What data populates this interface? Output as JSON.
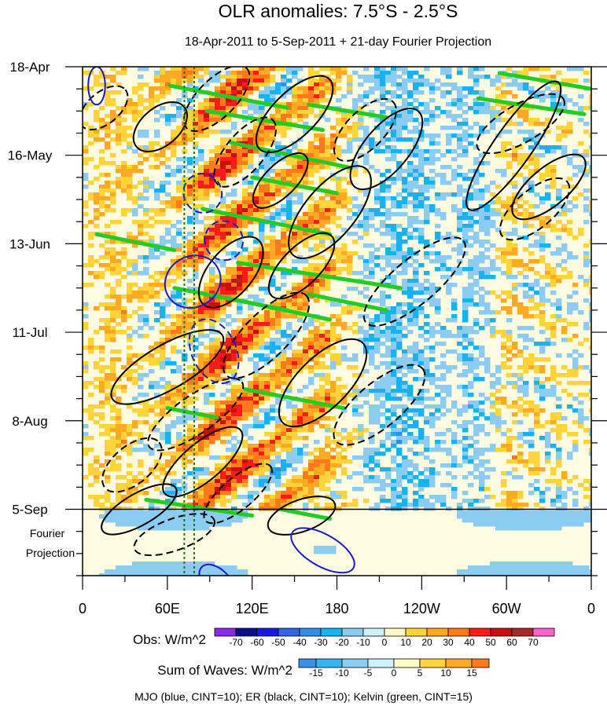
{
  "chart_data": {
    "type": "heatmap",
    "title": "OLR anomalies: 7.5°S - 2.5°S",
    "subtitle": "18-Apr-2011 to 5-Sep-2011 + 21-day Fourier Projection",
    "x_ticks": [
      "0",
      "60E",
      "120E",
      "180",
      "120W",
      "60W",
      "0"
    ],
    "x_values_deg_east": [
      0,
      60,
      120,
      180,
      240,
      300,
      360
    ],
    "y_ticks": [
      "18-Apr",
      "16-May",
      "13-Jun",
      "11-Jul",
      "8-Aug",
      "5-Sep"
    ],
    "y_values_day_offset": [
      0,
      28,
      56,
      84,
      112,
      140
    ],
    "projection_label_line1": "Fourier",
    "projection_label_line2": "Projection",
    "projection_days": 21,
    "obs_legend": {
      "label": "Obs: W/m^2",
      "levels": [
        "-70",
        "-60",
        "-50",
        "-40",
        "-30",
        "-20",
        "-10",
        "0",
        "10",
        "20",
        "30",
        "40",
        "50",
        "60",
        "70"
      ],
      "colors": [
        "#8a2be2",
        "#0d0d8a",
        "#1a1adf",
        "#3366dd",
        "#2f8fe6",
        "#18b2ee",
        "#8ccbf2",
        "#cdf0fa",
        "#fffbc8",
        "#ffd43a",
        "#ffaa22",
        "#ff7a1a",
        "#ff1a1a",
        "#c81010",
        "#a52a2a",
        "#ff66cc"
      ]
    },
    "waves_legend": {
      "label": "Sum of Waves: W/m^2",
      "levels": [
        "-15",
        "-10",
        "-5",
        "0",
        "5",
        "10",
        "15"
      ],
      "colors": [
        "#3c8fe8",
        "#36b4ee",
        "#8ccbf2",
        "#cdf0fa",
        "#fffbc8",
        "#ffd43a",
        "#ffaa22",
        "#ff7a1a"
      ]
    },
    "footnote": "MJO (blue, CINT=10); ER (black, CINT=10); Kelvin (green, CINT=15)",
    "series_colors": {
      "MJO": "#1a1acc",
      "ER": "#000000",
      "Kelvin": "#22cc22"
    },
    "ylim_days": [
      0,
      161
    ],
    "xlim_deg": [
      0,
      360
    ],
    "vertical_markers_deg": [
      72,
      79
    ],
    "features": {
      "kelvin_segments": [
        {
          "lon0": 62,
          "day0": 6,
          "lon1": 145,
          "day1": 13
        },
        {
          "lon0": 88,
          "day0": 14,
          "lon1": 170,
          "day1": 20
        },
        {
          "lon0": 160,
          "day0": 12,
          "lon1": 215,
          "day1": 16
        },
        {
          "lon0": 105,
          "day0": 24,
          "lon1": 190,
          "day1": 32
        },
        {
          "lon0": 120,
          "day0": 35,
          "lon1": 180,
          "day1": 40
        },
        {
          "lon0": 85,
          "day0": 45,
          "lon1": 175,
          "day1": 53
        },
        {
          "lon0": 10,
          "day0": 53,
          "lon1": 65,
          "day1": 58
        },
        {
          "lon0": 110,
          "day0": 62,
          "lon1": 225,
          "day1": 70
        },
        {
          "lon0": 65,
          "day0": 70,
          "lon1": 145,
          "day1": 77
        },
        {
          "lon0": 100,
          "day0": 73,
          "lon1": 175,
          "day1": 80
        },
        {
          "lon0": 160,
          "day0": 72,
          "lon1": 215,
          "day1": 77
        },
        {
          "lon0": 115,
          "day0": 102,
          "lon1": 185,
          "day1": 108
        },
        {
          "lon0": 60,
          "day0": 108,
          "lon1": 95,
          "day1": 111
        },
        {
          "lon0": 45,
          "day0": 137,
          "lon1": 120,
          "day1": 142
        },
        {
          "lon0": 140,
          "day0": 140,
          "lon1": 175,
          "day1": 143
        },
        {
          "lon0": 295,
          "day0": 2,
          "lon1": 360,
          "day1": 7
        },
        {
          "lon0": 280,
          "day0": 10,
          "lon1": 355,
          "day1": 15
        }
      ],
      "er_solid": [
        {
          "lon": 55,
          "day": 19,
          "rx": 22,
          "ry": 6,
          "rot": -40
        },
        {
          "lon": 150,
          "day": 15,
          "rx": 35,
          "ry": 7,
          "rot": -45
        },
        {
          "lon": 215,
          "day": 26,
          "rx": 35,
          "ry": 7,
          "rot": -50
        },
        {
          "lon": 140,
          "day": 36,
          "rx": 25,
          "ry": 5,
          "rot": -45
        },
        {
          "lon": 175,
          "day": 46,
          "rx": 40,
          "ry": 8,
          "rot": -50
        },
        {
          "lon": 105,
          "day": 65,
          "rx": 30,
          "ry": 7,
          "rot": -50
        },
        {
          "lon": 155,
          "day": 63,
          "rx": 30,
          "ry": 6,
          "rot": -45
        },
        {
          "lon": 60,
          "day": 95,
          "rx": 45,
          "ry": 7,
          "rot": -30
        },
        {
          "lon": 170,
          "day": 100,
          "rx": 40,
          "ry": 8,
          "rot": -45
        },
        {
          "lon": 85,
          "day": 125,
          "rx": 35,
          "ry": 6,
          "rot": -40
        },
        {
          "lon": 330,
          "day": 38,
          "rx": 32,
          "ry": 6,
          "rot": -40
        },
        {
          "lon": 305,
          "day": 25,
          "rx": 55,
          "ry": 6,
          "rot": -55
        },
        {
          "lon": 40,
          "day": 140,
          "rx": 30,
          "ry": 5,
          "rot": -30
        },
        {
          "lon": 155,
          "day": 142,
          "rx": 25,
          "ry": 5,
          "rot": -20
        }
      ],
      "er_dashed": [
        {
          "lon": 15,
          "day": 13,
          "rx": 20,
          "ry": 5,
          "rot": -40
        },
        {
          "lon": 95,
          "day": 10,
          "rx": 30,
          "ry": 6,
          "rot": -45
        },
        {
          "lon": 115,
          "day": 27,
          "rx": 30,
          "ry": 6,
          "rot": -50
        },
        {
          "lon": 200,
          "day": 20,
          "rx": 28,
          "ry": 6,
          "rot": -45
        },
        {
          "lon": 310,
          "day": 18,
          "rx": 35,
          "ry": 6,
          "rot": -30
        },
        {
          "lon": 320,
          "day": 45,
          "rx": 30,
          "ry": 6,
          "rot": -40
        },
        {
          "lon": 235,
          "day": 68,
          "rx": 45,
          "ry": 7,
          "rot": -40
        },
        {
          "lon": 130,
          "day": 85,
          "rx": 40,
          "ry": 7,
          "rot": -45
        },
        {
          "lon": 210,
          "day": 107,
          "rx": 40,
          "ry": 7,
          "rot": -40
        },
        {
          "lon": 80,
          "day": 110,
          "rx": 40,
          "ry": 6,
          "rot": -35
        },
        {
          "lon": 35,
          "day": 126,
          "rx": 25,
          "ry": 6,
          "rot": -40
        },
        {
          "lon": 110,
          "day": 135,
          "rx": 30,
          "ry": 5,
          "rot": -40
        },
        {
          "lon": 65,
          "day": 148,
          "rx": 30,
          "ry": 5,
          "rot": -20
        }
      ],
      "mjo_solid": [
        {
          "lon": 10,
          "day": 6,
          "rx": 6,
          "ry": 6,
          "rot": 0
        },
        {
          "lon": 78,
          "day": 68,
          "rx": 18,
          "ry": 9,
          "rot": 60
        },
        {
          "lon": 170,
          "day": 153,
          "rx": 25,
          "ry": 5,
          "rot": 30
        },
        {
          "lon": 95,
          "day": 163,
          "rx": 15,
          "ry": 4,
          "rot": 45
        }
      ],
      "mjo_dashed": [
        {
          "lon": 85,
          "day": 40,
          "rx": 14,
          "ry": 6,
          "rot": 60
        },
        {
          "lon": 93,
          "day": 90,
          "rx": 24,
          "ry": 7,
          "rot": 65
        },
        {
          "lon": 100,
          "day": 55,
          "rx": 14,
          "ry": 6,
          "rot": 70
        }
      ]
    }
  }
}
